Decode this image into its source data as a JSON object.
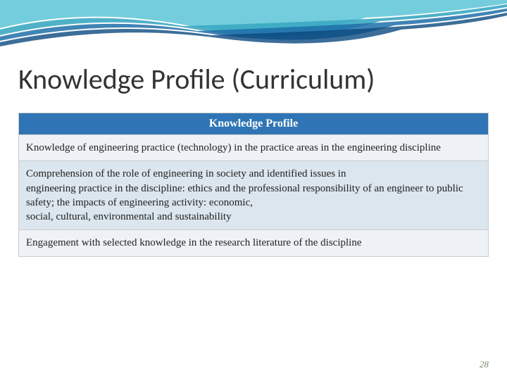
{
  "decoration": {
    "wave_colors": [
      "#5cc4d6",
      "#3ba9c2",
      "#1f6fa8",
      "#0b4a80"
    ],
    "background": "#ffffff"
  },
  "title": {
    "text": "Knowledge Profile (Curriculum)",
    "color": "#333333",
    "fontsize": 40
  },
  "table": {
    "type": "table",
    "header": {
      "label": "Knowledge Profile",
      "background": "#2f75b5",
      "text_color": "#ffffff",
      "fontsize": 16,
      "font_weight": "bold"
    },
    "row_backgrounds": [
      "#eef2f6",
      "#dbe6ee"
    ],
    "border_color": "#cccccc",
    "row_fontsize": 15,
    "rows": [
      "Knowledge of engineering practice (technology) in the practice areas in the engineering discipline",
      "Comprehension of the role of engineering in society and identified issues in\nengineering practice in the discipline: ethics and the professional responsibility of an engineer to public safety; the impacts of engineering activity: economic,\nsocial, cultural, environmental and sustainability",
      "Engagement with selected knowledge in the research literature of the discipline"
    ]
  },
  "page_number": {
    "value": "28",
    "color": "#7a8a70",
    "fontsize": 13
  }
}
